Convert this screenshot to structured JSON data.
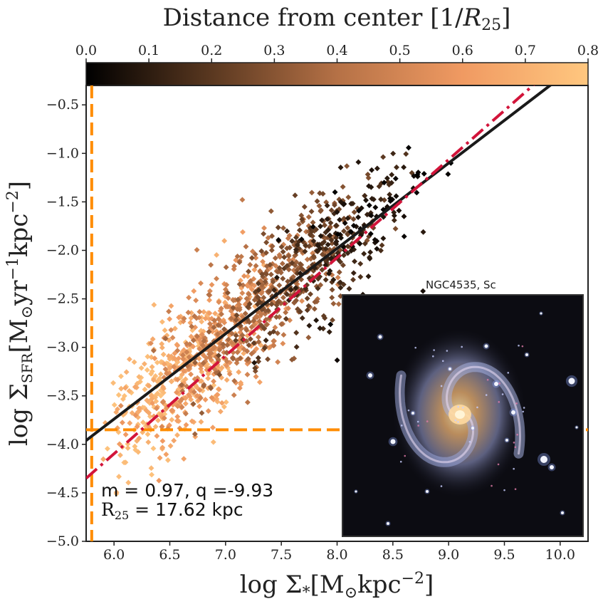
{
  "colorbar": {
    "label_main": "Distance from center [1/",
    "label_var": "R",
    "label_sub": "25",
    "label_close": "]",
    "range": [
      0.0,
      0.8
    ],
    "ticks": [
      "0.0",
      "0.1",
      "0.2",
      "0.3",
      "0.4",
      "0.5",
      "0.6",
      "0.7",
      "0.8"
    ],
    "colormap": "copper",
    "colors": [
      "#000000",
      "#5a3820",
      "#b57146",
      "#f09a62",
      "#ffc77f"
    ]
  },
  "chart_data": {
    "type": "scatter",
    "xlabel": "log Σ*[M⊙kpc−2]",
    "ylabel": "log ΣSFR[M⊙yr−1kpc−2]",
    "xlim": [
      5.75,
      10.25
    ],
    "ylim": [
      -5.0,
      -0.3
    ],
    "xticks": [
      "6.0",
      "6.5",
      "7.0",
      "7.5",
      "8.0",
      "8.5",
      "9.0",
      "9.5",
      "10.0"
    ],
    "yticks": [
      "-0.5",
      "-1.0",
      "-1.5",
      "-2.0",
      "-2.5",
      "-3.0",
      "-3.5",
      "-4.0",
      "-4.5",
      "-5.0"
    ],
    "fit_lines": [
      {
        "style": "solid",
        "color": "#1a1a1a",
        "x": [
          5.75,
          10.25
        ],
        "y": [
          -3.96,
          -0.0
        ]
      },
      {
        "style": "dash-dot",
        "color": "#d2143a",
        "x": [
          5.75,
          10.25
        ],
        "y": [
          -4.35,
          0.2
        ]
      }
    ],
    "limit_lines": {
      "color": "#ff8c00",
      "vertical_x": 5.8,
      "horizontal_y": -3.85
    },
    "scatter_highlights": [
      {
        "x": 8.72,
        "y": -1.22,
        "r": 0.0
      },
      {
        "x": 8.78,
        "y": -1.21,
        "r": 0.0
      },
      {
        "x": 9.02,
        "y": -1.1,
        "r": 0.0
      },
      {
        "x": 8.6,
        "y": -1.65,
        "r": 0.05
      },
      {
        "x": 8.77,
        "y": -2.42,
        "r": 0.05
      },
      {
        "x": 8.45,
        "y": -1.55,
        "r": 0.05
      }
    ]
  },
  "annotations": {
    "fit_text": "m = 0.97, q =-9.93",
    "r25_var": "R",
    "r25_sub": "25",
    "r25_rest": " = 17.62 kpc"
  },
  "inset": {
    "title": "NGC4535, Sc"
  }
}
